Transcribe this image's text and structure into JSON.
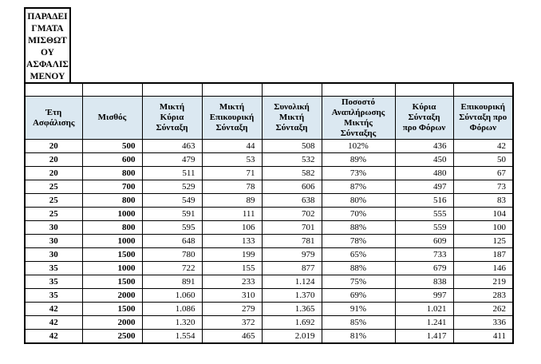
{
  "colors": {
    "header_bg": "#dbe8f1",
    "border": "#000000",
    "text": "#000000"
  },
  "title_box": {
    "text": "ΠΑΡΑΔΕΙ\nΓΜΑΤΑ\nΜΙΣΘΩΤ\nΟΥ\nΑΣΦΑΛΙΣ\nΜΕΝΟΥ"
  },
  "table": {
    "headers": [
      "Έτη\nΑσφάλισης",
      "Μισθός",
      "Μικτή\nΚύρια\nΣύνταξη",
      "Μικτή\nΕπικουρική\nΣύνταξη",
      "Συνολική\nΜικτή\nΣύνταξη",
      "Ποσοστό\nΑναπλήρωσης\nΜικτής\nΣύνταξης",
      "Κύρια\nΣύνταξη\nπρο Φόρων",
      "Επικουρική\nΣύνταξη προ\nΦόρων"
    ],
    "rows": [
      [
        "20",
        "500",
        "463",
        "44",
        "508",
        "102%",
        "436",
        "42"
      ],
      [
        "20",
        "600",
        "479",
        "53",
        "532",
        "89%",
        "450",
        "50"
      ],
      [
        "20",
        "800",
        "511",
        "71",
        "582",
        "73%",
        "480",
        "67"
      ],
      [
        "25",
        "700",
        "529",
        "78",
        "606",
        "87%",
        "497",
        "73"
      ],
      [
        "25",
        "800",
        "549",
        "89",
        "638",
        "80%",
        "516",
        "83"
      ],
      [
        "25",
        "1000",
        "591",
        "111",
        "702",
        "70%",
        "555",
        "104"
      ],
      [
        "30",
        "800",
        "595",
        "106",
        "701",
        "88%",
        "559",
        "100"
      ],
      [
        "30",
        "1000",
        "648",
        "133",
        "781",
        "78%",
        "609",
        "125"
      ],
      [
        "30",
        "1500",
        "780",
        "199",
        "979",
        "65%",
        "733",
        "187"
      ],
      [
        "35",
        "1000",
        "722",
        "155",
        "877",
        "88%",
        "679",
        "146"
      ],
      [
        "35",
        "1500",
        "891",
        "233",
        "1.124",
        "75%",
        "838",
        "219"
      ],
      [
        "35",
        "2000",
        "1.060",
        "310",
        "1.370",
        "69%",
        "997",
        "283"
      ],
      [
        "42",
        "1500",
        "1.086",
        "279",
        "1.365",
        "91%",
        "1.021",
        "262"
      ],
      [
        "42",
        "2000",
        "1.320",
        "372",
        "1.692",
        "85%",
        "1.241",
        "336"
      ],
      [
        "42",
        "2500",
        "1.554",
        "465",
        "2.019",
        "81%",
        "1.417",
        "411"
      ]
    ]
  }
}
